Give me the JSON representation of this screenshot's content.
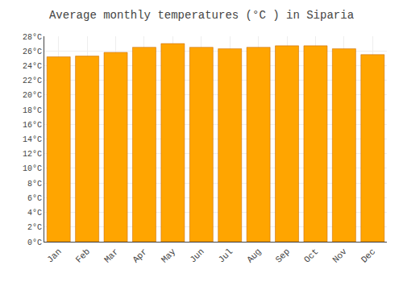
{
  "chart_data": {
    "type": "bar",
    "title": "Average monthly temperatures (°C ) in Siparia",
    "categories": [
      "Jan",
      "Feb",
      "Mar",
      "Apr",
      "May",
      "Jun",
      "Jul",
      "Aug",
      "Sep",
      "Oct",
      "Nov",
      "Dec"
    ],
    "values": [
      25.2,
      25.3,
      25.8,
      26.5,
      27.0,
      26.5,
      26.3,
      26.5,
      26.7,
      26.7,
      26.3,
      25.5
    ],
    "color": "#FFA500",
    "ylim": [
      0,
      28
    ],
    "yticks": [
      {
        "value": 0,
        "label": "0°C"
      },
      {
        "value": 2,
        "label": "2°C"
      },
      {
        "value": 4,
        "label": "4°C"
      },
      {
        "value": 6,
        "label": "6°C"
      },
      {
        "value": 8,
        "label": "8°C"
      },
      {
        "value": 10,
        "label": "10°C"
      },
      {
        "value": 12,
        "label": "12°C"
      },
      {
        "value": 14,
        "label": "14°C"
      },
      {
        "value": 16,
        "label": "16°C"
      },
      {
        "value": 18,
        "label": "18°C"
      },
      {
        "value": 20,
        "label": "20°C"
      },
      {
        "value": 22,
        "label": "22°C"
      },
      {
        "value": 24,
        "label": "24°C"
      },
      {
        "value": 26,
        "label": "26°C"
      },
      {
        "value": 28,
        "label": "28°C"
      }
    ],
    "grid": true
  }
}
